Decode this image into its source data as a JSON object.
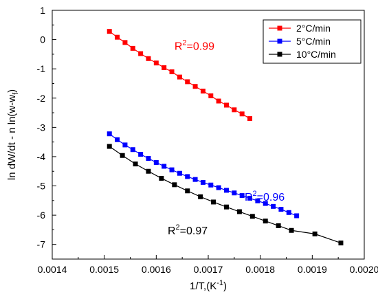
{
  "chart_data": {
    "type": "scatter",
    "xlabel": "1/T,(K",
    "xlabel_sup": "-1",
    "xlabel_close": ")",
    "ylabel": "ln dW/dt - n ln(w-w",
    "ylabel_sub": "f",
    "ylabel_close": ")",
    "xlim": [
      0.0014,
      0.002
    ],
    "ylim": [
      -7.5,
      1.0
    ],
    "xticks": [
      0.0014,
      0.0015,
      0.0016,
      0.0017,
      0.0018,
      0.0019,
      0.002
    ],
    "xtick_labels": [
      "0.0014",
      "0.0015",
      "0.0016",
      "0.0017",
      "0.0018",
      "0.0019",
      "0.0020"
    ],
    "yticks": [
      1,
      0,
      -1,
      -2,
      -3,
      -4,
      -5,
      -6,
      -7
    ],
    "ytick_labels": [
      "1",
      "0",
      "-1",
      "-2",
      "-3",
      "-4",
      "-5",
      "-6",
      "-7"
    ],
    "grid": false,
    "legend_position": "top-right",
    "series": [
      {
        "name": "2°C/min",
        "color": "#ff0000",
        "marker": "square",
        "x": [
          0.00151,
          0.001525,
          0.00154,
          0.001555,
          0.00157,
          0.001585,
          0.0016,
          0.001615,
          0.00163,
          0.001645,
          0.00166,
          0.001675,
          0.00169,
          0.001705,
          0.00172,
          0.001735,
          0.00175,
          0.001765,
          0.00178
        ],
        "y": [
          0.28,
          0.08,
          -0.1,
          -0.3,
          -0.48,
          -0.65,
          -0.8,
          -0.96,
          -1.1,
          -1.28,
          -1.44,
          -1.6,
          -1.76,
          -1.92,
          -2.1,
          -2.24,
          -2.4,
          -2.54,
          -2.7
        ]
      },
      {
        "name": "5°C/min",
        "color": "#0000ff",
        "marker": "square",
        "x": [
          0.00151,
          0.001525,
          0.00154,
          0.001555,
          0.00157,
          0.001585,
          0.0016,
          0.001615,
          0.00163,
          0.001645,
          0.00166,
          0.001675,
          0.00169,
          0.001705,
          0.00172,
          0.001735,
          0.00175,
          0.001765,
          0.00178,
          0.001795,
          0.00181,
          0.001825,
          0.00184,
          0.001855,
          0.00187
        ],
        "y": [
          -3.22,
          -3.42,
          -3.6,
          -3.76,
          -3.92,
          -4.06,
          -4.2,
          -4.33,
          -4.45,
          -4.57,
          -4.68,
          -4.78,
          -4.88,
          -4.97,
          -5.06,
          -5.15,
          -5.24,
          -5.33,
          -5.42,
          -5.51,
          -5.6,
          -5.7,
          -5.8,
          -5.91,
          -6.02
        ]
      },
      {
        "name": "10°C/min",
        "color": "#000000",
        "marker": "square",
        "x": [
          0.00151,
          0.001535,
          0.00156,
          0.001585,
          0.00161,
          0.001635,
          0.00166,
          0.001685,
          0.00171,
          0.001735,
          0.00176,
          0.001785,
          0.00181,
          0.001835,
          0.00186,
          0.001905,
          0.001955
        ],
        "y": [
          -3.65,
          -3.96,
          -4.25,
          -4.5,
          -4.74,
          -4.96,
          -5.17,
          -5.37,
          -5.55,
          -5.72,
          -5.88,
          -6.04,
          -6.2,
          -6.36,
          -6.52,
          -6.64,
          -6.95
        ]
      }
    ],
    "annotations": [
      {
        "text": "R",
        "sup": "2",
        "rest": "=0.99",
        "color": "#ff0000",
        "x": 0.001635,
        "y": -0.35
      },
      {
        "text": "R",
        "sup": "2",
        "rest": "=0.96",
        "color": "#0000ff",
        "x": 0.00177,
        "y": -5.5
      },
      {
        "text": "R",
        "sup": "2",
        "rest": "=0.97",
        "color": "#000000",
        "x": 0.001622,
        "y": -6.65
      }
    ]
  }
}
